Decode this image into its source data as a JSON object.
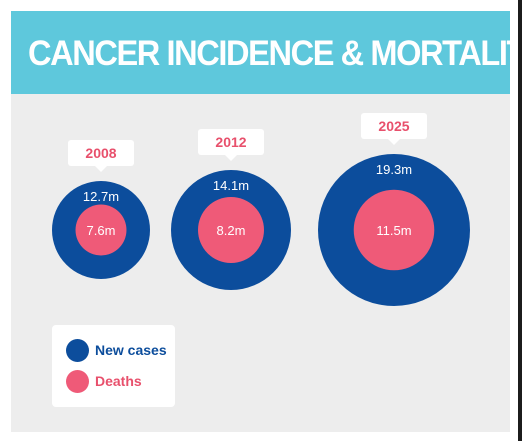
{
  "header": {
    "title": "CANCER INCIDENCE & MORTALITY"
  },
  "colors": {
    "header_bg": "#5ec8dc",
    "panel_bg": "#ededed",
    "new_cases": "#0c4d9c",
    "deaths": "#ef5a78",
    "year_label": "#e8506c"
  },
  "legend": [
    {
      "name": "New cases",
      "color": "#0c4d9c",
      "text_color": "#0c4d9c"
    },
    {
      "name": "Deaths",
      "color": "#ef5a78",
      "text_color": "#e8506c"
    }
  ],
  "chart_data": {
    "type": "bubble",
    "title": "CANCER INCIDENCE & MORTALITY",
    "categories": [
      "2008",
      "2012",
      "2025"
    ],
    "series": [
      {
        "name": "New cases",
        "values": [
          12.7,
          14.1,
          19.3
        ],
        "labels": [
          "12.7m",
          "14.1m",
          "19.3m"
        ]
      },
      {
        "name": "Deaths",
        "values": [
          7.6,
          8.2,
          11.5
        ],
        "labels": [
          "7.6m",
          "8.2m",
          "11.5m"
        ]
      }
    ],
    "unit": "m"
  }
}
